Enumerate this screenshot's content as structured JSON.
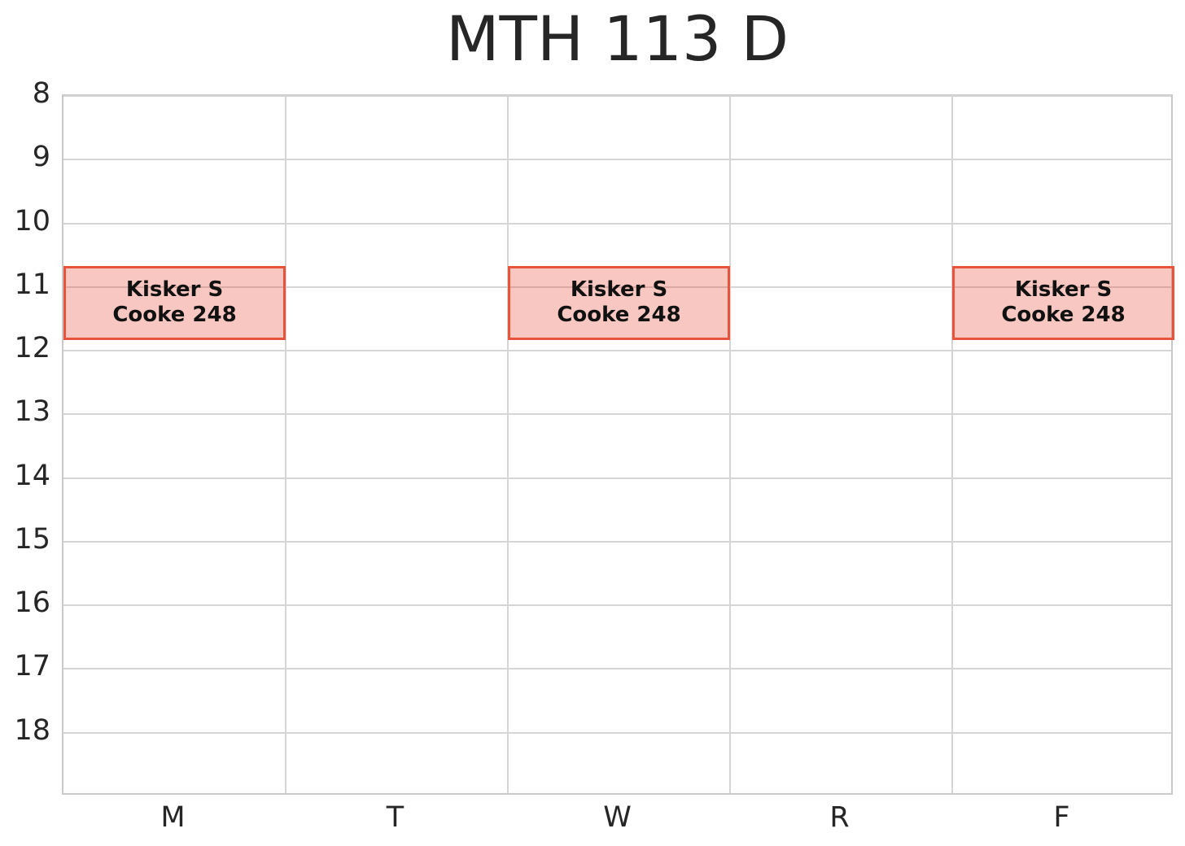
{
  "page": {
    "title": "MTH 113 D"
  },
  "chart_data": {
    "type": "bar",
    "subtype": "weekly_schedule_blocks",
    "title": "MTH 113 D",
    "categories": [
      "M",
      "T",
      "W",
      "R",
      "F"
    ],
    "xlabel": "",
    "ylabel": "",
    "y_ticks": [
      "8",
      "9",
      "10",
      "11",
      "12",
      "13",
      "14",
      "15",
      "16",
      "17",
      "18"
    ],
    "y_tick_values": [
      8,
      9,
      10,
      11,
      12,
      13,
      14,
      15,
      16,
      17,
      18
    ],
    "y_top": 8,
    "y_bottom": 19,
    "y_axis_inverted": true,
    "grid": true,
    "legend": false,
    "events": [
      {
        "day": "M",
        "day_index": 0,
        "start_hour": 10.67,
        "end_hour": 11.83,
        "lines": [
          "Kisker S",
          "Cooke 248"
        ]
      },
      {
        "day": "W",
        "day_index": 2,
        "start_hour": 10.67,
        "end_hour": 11.83,
        "lines": [
          "Kisker S",
          "Cooke 248"
        ]
      },
      {
        "day": "F",
        "day_index": 4,
        "start_hour": 10.67,
        "end_hour": 11.83,
        "lines": [
          "Kisker S",
          "Cooke 248"
        ]
      }
    ],
    "colors": {
      "background": "#ffffff",
      "text": "#262626",
      "grid_line": "#d5d5d5",
      "plot_border": "#c9c9c9",
      "event_fill": "rgba(232,70,50,0.3)",
      "event_border": "#e8533b",
      "event_text": "#111111"
    }
  }
}
